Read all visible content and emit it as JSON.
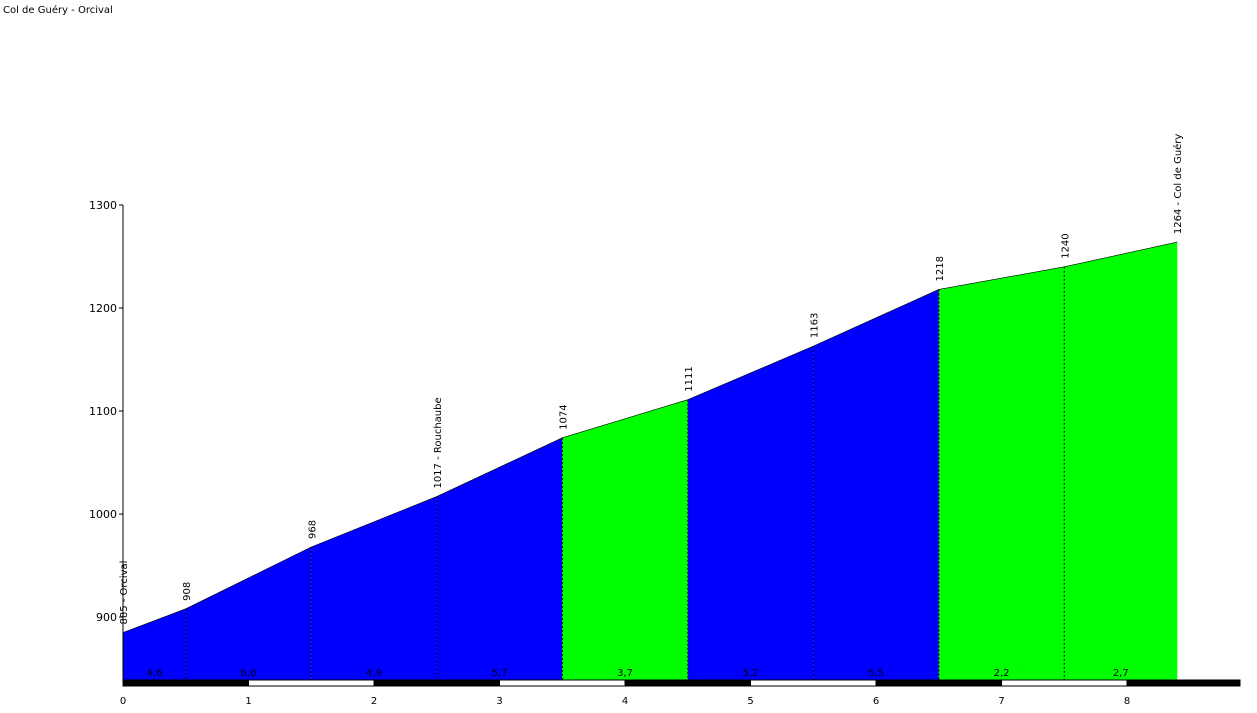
{
  "chart_data": {
    "type": "profile",
    "title": "Col de Guéry - Orcival",
    "x": [
      0,
      0.5,
      1.5,
      2.5,
      3.5,
      4.5,
      5.5,
      6.5,
      7.5,
      8.4
    ],
    "values": [
      885,
      908,
      968,
      1017,
      1074,
      1111,
      1163,
      1218,
      1240,
      1264
    ],
    "value_labels": [
      "885 - Orcival",
      "908",
      "968",
      "1017 - Rouchaube",
      "1074",
      "1111",
      "1163",
      "1218",
      "1240",
      "1264 - Col de Guéry"
    ],
    "segments": {
      "values": [
        4.6,
        6.0,
        4.9,
        5.7,
        3.7,
        5.2,
        5.5,
        2.2,
        2.7
      ],
      "value_labels": [
        "4,6",
        "6,0",
        "4,9",
        "5,7",
        "3,7",
        "5,2",
        "5,5",
        "2,2",
        "2,7"
      ],
      "colors": [
        "#0000ff",
        "#0000ff",
        "#0000ff",
        "#0000ff",
        "#00ff00",
        "#0000ff",
        "#0000ff",
        "#00ff00",
        "#00ff00"
      ]
    },
    "xlim": [
      0,
      8.9
    ],
    "xticks": [
      0,
      1,
      2,
      3,
      4,
      5,
      6,
      7,
      8
    ],
    "ylim": [
      836,
      1300
    ],
    "yticks": [
      900,
      1000,
      1100,
      1200,
      1300
    ]
  }
}
